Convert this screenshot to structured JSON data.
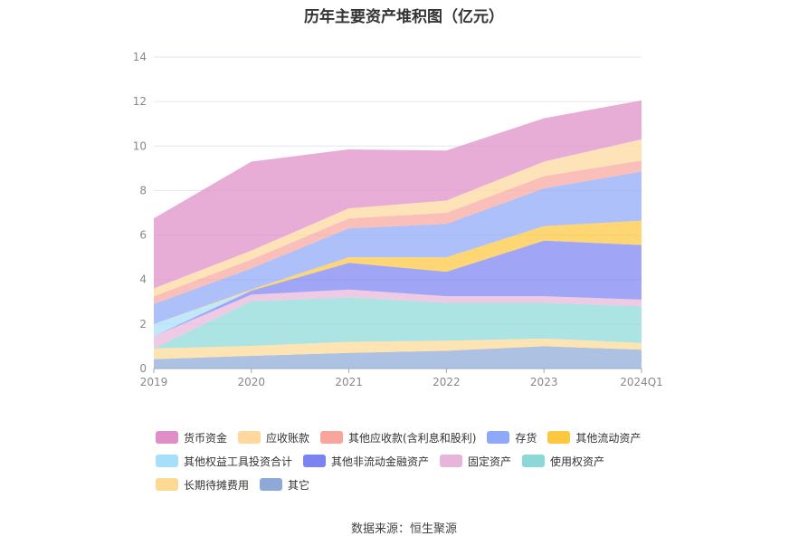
{
  "chart_data": {
    "type": "area",
    "title": "历年主要资产堆积图（亿元）",
    "categories": [
      "2019",
      "2020",
      "2021",
      "2022",
      "2023",
      "2024Q1"
    ],
    "yticks": [
      "0",
      "2",
      "4",
      "6",
      "8",
      "10",
      "12",
      "14"
    ],
    "ylim": [
      0,
      14
    ],
    "stacked": true,
    "legend_position": "bottom",
    "series": [
      {
        "name": "其它",
        "color": "#8ea9d8",
        "values": [
          0.42,
          0.57,
          0.7,
          0.8,
          1.0,
          0.85
        ]
      },
      {
        "name": "长期待摊费用",
        "color": "#fdd994",
        "values": [
          0.48,
          0.45,
          0.5,
          0.45,
          0.35,
          0.3
        ]
      },
      {
        "name": "使用权资产",
        "color": "#8cd8d8",
        "values": [
          0.0,
          2.0,
          2.0,
          1.7,
          1.6,
          1.65
        ]
      },
      {
        "name": "固定资产",
        "color": "#e7b5d9",
        "values": [
          0.55,
          0.3,
          0.35,
          0.3,
          0.3,
          0.3
        ]
      },
      {
        "name": "其他非流动金融资产",
        "color": "#7b82f2",
        "values": [
          0.0,
          0.18,
          1.2,
          1.1,
          2.5,
          2.45
        ]
      },
      {
        "name": "其他权益工具投资合计",
        "color": "#a7dffb",
        "values": [
          0.55,
          0.0,
          0.0,
          0.0,
          0.0,
          0.0
        ]
      },
      {
        "name": "其他流动资产",
        "color": "#fdc73f",
        "values": [
          0.0,
          0.05,
          0.25,
          0.65,
          0.65,
          1.1
        ]
      },
      {
        "name": "存货",
        "color": "#8fa8f8",
        "values": [
          0.9,
          0.95,
          1.3,
          1.5,
          1.7,
          2.2
        ]
      },
      {
        "name": "其他应收款(含利息和股利)",
        "color": "#f8a69d",
        "values": [
          0.35,
          0.4,
          0.45,
          0.5,
          0.55,
          0.5
        ]
      },
      {
        "name": "应收账款",
        "color": "#fed89d",
        "values": [
          0.35,
          0.4,
          0.45,
          0.55,
          0.65,
          0.95
        ]
      },
      {
        "name": "货币资金",
        "color": "#df8ec7",
        "values": [
          3.15,
          4.0,
          2.65,
          2.25,
          1.95,
          1.75
        ]
      }
    ],
    "legend_order": [
      "货币资金",
      "应收账款",
      "其他应收款(含利息和股利)",
      "存货",
      "其他流动资产",
      "其他权益工具投资合计",
      "其他非流动金融资产",
      "固定资产",
      "使用权资产",
      "长期待摊费用",
      "其它"
    ]
  },
  "source": "数据来源：恒生聚源"
}
